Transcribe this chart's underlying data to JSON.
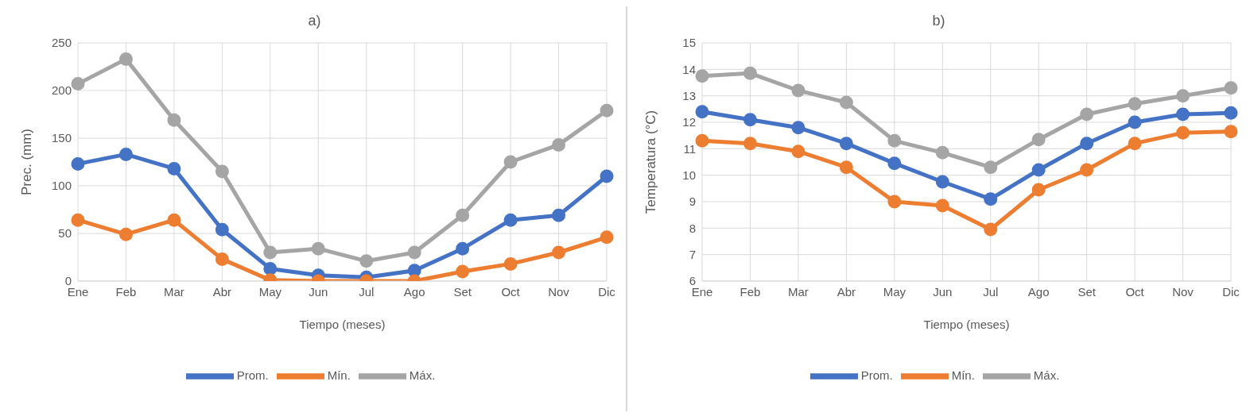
{
  "chart_data": [
    {
      "type": "line",
      "title": "a)",
      "xlabel": "Tiempo (meses)",
      "ylabel": "Prec. (mm)",
      "categories": [
        "Ene",
        "Feb",
        "Mar",
        "Abr",
        "May",
        "Jun",
        "Jul",
        "Ago",
        "Set",
        "Oct",
        "Nov",
        "Dic"
      ],
      "series": [
        {
          "name": "Prom.",
          "color": "#4472c4",
          "values": [
            123,
            133,
            118,
            54,
            13,
            6,
            4,
            11,
            34,
            64,
            69,
            110
          ]
        },
        {
          "name": "Mín.",
          "color": "#ed7d31",
          "values": [
            64,
            49,
            64,
            23,
            1,
            0,
            0,
            0,
            10,
            18,
            30,
            46
          ]
        },
        {
          "name": "Máx.",
          "color": "#a5a5a5",
          "values": [
            207,
            233,
            169,
            115,
            30,
            34,
            21,
            30,
            69,
            125,
            143,
            179
          ]
        }
      ],
      "ylim": [
        0,
        250
      ],
      "yticks": [
        0,
        50,
        100,
        150,
        200,
        250
      ],
      "grid": true,
      "legend": "bottom",
      "marker": "circle",
      "line_style": "solid"
    },
    {
      "type": "line",
      "title": "b)",
      "xlabel": "Tiempo (meses)",
      "ylabel": "Temperatura (°C)",
      "categories": [
        "Ene",
        "Feb",
        "Mar",
        "Abr",
        "May",
        "Jun",
        "Jul",
        "Ago",
        "Set",
        "Oct",
        "Nov",
        "Dic"
      ],
      "series": [
        {
          "name": "Prom.",
          "color": "#4472c4",
          "values": [
            12.4,
            12.1,
            11.8,
            11.2,
            10.45,
            9.75,
            9.1,
            10.2,
            11.2,
            12.0,
            12.3,
            12.35
          ]
        },
        {
          "name": "Mín.",
          "color": "#ed7d31",
          "values": [
            11.3,
            11.2,
            10.9,
            10.3,
            9.0,
            8.85,
            7.95,
            9.45,
            10.2,
            11.2,
            11.6,
            11.65
          ]
        },
        {
          "name": "Máx.",
          "color": "#a5a5a5",
          "values": [
            13.75,
            13.85,
            13.2,
            12.75,
            11.3,
            10.85,
            10.3,
            11.35,
            12.3,
            12.7,
            13.0,
            13.3
          ]
        }
      ],
      "ylim": [
        6,
        15
      ],
      "yticks": [
        6,
        7,
        8,
        9,
        10,
        11,
        12,
        13,
        14,
        15
      ],
      "grid": true,
      "legend": "bottom",
      "marker": "circle",
      "line_style": "solid"
    }
  ]
}
